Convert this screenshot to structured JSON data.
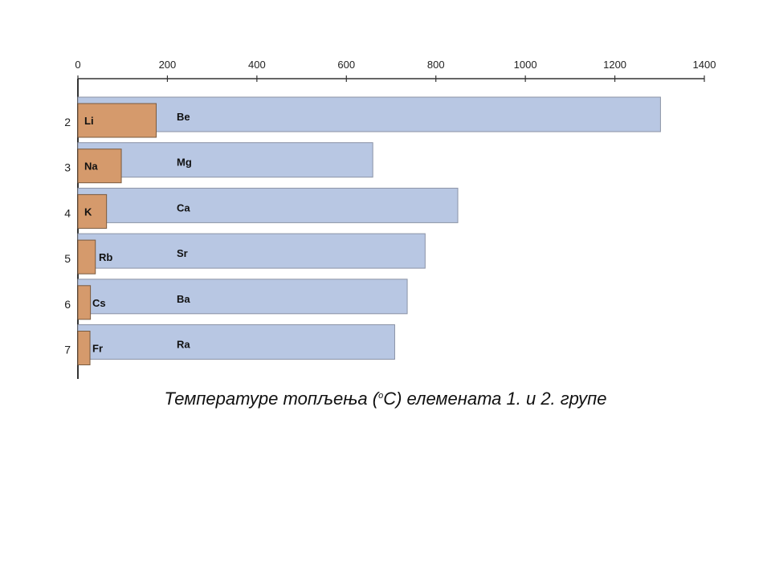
{
  "chart_data": {
    "type": "bar",
    "orientation": "horizontal",
    "title": "Температуре топљења (°C) елемената 1. и 2. групе",
    "title_parts": {
      "before": "Температуре топљења (",
      "degree": "o",
      "after": "C) елемената 1. и 2. групе"
    },
    "categories": [
      "2",
      "3",
      "4",
      "5",
      "6",
      "7"
    ],
    "xlim": [
      0,
      1400
    ],
    "xticks": [
      0,
      200,
      400,
      600,
      800,
      1000,
      1200,
      1400
    ],
    "xaxis_position": "top",
    "grid": false,
    "series": [
      {
        "labels": [
          "Be",
          "Mg",
          "Ca",
          "Sr",
          "Ba",
          "Ra"
        ],
        "values": [
          1302,
          659,
          849,
          776,
          736,
          708
        ],
        "color": "#b8c7e3"
      },
      {
        "labels": [
          "Li",
          "Na",
          "K",
          "Rb",
          "Cs",
          "Fr"
        ],
        "values": [
          175,
          97,
          64,
          39,
          28,
          27
        ],
        "color": "#d59a6c"
      }
    ]
  }
}
